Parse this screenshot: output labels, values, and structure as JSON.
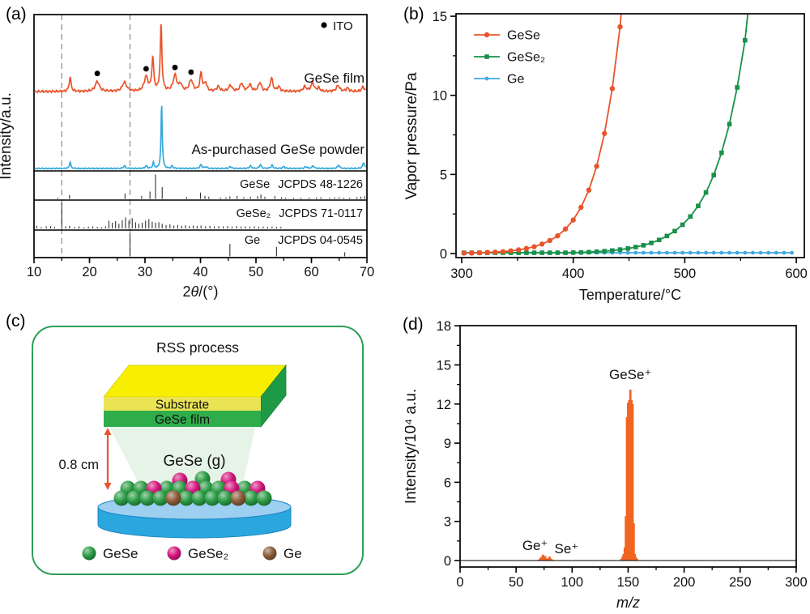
{
  "figure_labels": {
    "a": "(a)",
    "b": "(b)",
    "c": "(c)",
    "d": "(d)"
  },
  "chart_data": [
    {
      "id": "a",
      "type": "line",
      "subtype": "xrd",
      "xlabel": "2θ/(°)",
      "ylabel": "Intensity/a.u.",
      "xlim": [
        10,
        70
      ],
      "xticks": [
        10,
        20,
        30,
        40,
        50,
        60,
        70
      ],
      "xminor_step": 5,
      "grid": false,
      "ito_label": "ITO",
      "ito_dot_positions": [
        21.4,
        30.2,
        35.4,
        38.3
      ],
      "dashed_guides": [
        15.0,
        27.3
      ],
      "series": [
        {
          "name": "GeSe film",
          "color": "#E8542C",
          "peaks": [
            [
              16.5,
              0.22,
              0.2
            ],
            [
              21.4,
              0.15,
              0.45
            ],
            [
              26.3,
              0.14,
              0.45
            ],
            [
              30.2,
              0.22,
              0.4
            ],
            [
              31.4,
              0.5,
              0.2
            ],
            [
              32.9,
              1.0,
              0.18
            ],
            [
              35.4,
              0.24,
              0.38
            ],
            [
              36.4,
              0.1,
              0.3
            ],
            [
              38.3,
              0.17,
              0.38
            ],
            [
              40.1,
              0.27,
              0.24
            ],
            [
              40.9,
              0.12,
              0.28
            ],
            [
              43.2,
              0.07,
              0.35
            ],
            [
              45.4,
              0.09,
              0.35
            ],
            [
              47.4,
              0.12,
              0.32
            ],
            [
              48.9,
              0.1,
              0.32
            ],
            [
              50.7,
              0.13,
              0.32
            ],
            [
              52.8,
              0.2,
              0.28
            ],
            [
              54.1,
              0.07,
              0.28
            ],
            [
              58.8,
              0.07,
              0.35
            ],
            [
              60.2,
              0.13,
              0.32
            ],
            [
              61.3,
              0.05,
              0.28
            ],
            [
              64.8,
              0.09,
              0.35
            ],
            [
              66.5,
              0.05,
              0.3
            ],
            [
              69.3,
              0.07,
              0.28
            ]
          ]
        },
        {
          "name": "As-purchased GeSe powder",
          "color": "#35A8DC",
          "peaks": [
            [
              16.5,
              0.1,
              0.15
            ],
            [
              26.3,
              0.04,
              0.2
            ],
            [
              30.2,
              0.04,
              0.2
            ],
            [
              31.5,
              0.09,
              0.15
            ],
            [
              33.0,
              1.0,
              0.13
            ],
            [
              34.9,
              0.04,
              0.15
            ],
            [
              40.1,
              0.06,
              0.2
            ],
            [
              41.0,
              0.03,
              0.18
            ],
            [
              45.4,
              0.03,
              0.2
            ],
            [
              49.0,
              0.04,
              0.2
            ],
            [
              50.8,
              0.06,
              0.2
            ],
            [
              52.9,
              0.05,
              0.2
            ],
            [
              55.0,
              0.03,
              0.2
            ],
            [
              59.0,
              0.03,
              0.22
            ],
            [
              60.3,
              0.04,
              0.22
            ],
            [
              64.9,
              0.05,
              0.22
            ],
            [
              69.4,
              0.09,
              0.2
            ]
          ]
        }
      ],
      "references": [
        {
          "name": "GeSe",
          "code": "JCPDS 48-1226",
          "sticks": [
            [
              14.3,
              0.05
            ],
            [
              16.4,
              0.16
            ],
            [
              26.4,
              0.22
            ],
            [
              29.4,
              0.12
            ],
            [
              30.9,
              0.3
            ],
            [
              31.9,
              1.0
            ],
            [
              33.1,
              0.48
            ],
            [
              37.5,
              0.07
            ],
            [
              40.0,
              0.26
            ],
            [
              40.8,
              0.12
            ],
            [
              41.5,
              0.09
            ],
            [
              43.6,
              0.06
            ],
            [
              44.6,
              0.06
            ],
            [
              45.3,
              0.1
            ],
            [
              46.6,
              0.12
            ],
            [
              47.8,
              0.07
            ],
            [
              49.0,
              0.09
            ],
            [
              50.3,
              0.11
            ],
            [
              50.9,
              0.18
            ],
            [
              51.6,
              0.09
            ],
            [
              53.4,
              0.11
            ],
            [
              54.6,
              0.07
            ],
            [
              55.3,
              0.05
            ],
            [
              56.8,
              0.05
            ],
            [
              58.1,
              0.05
            ],
            [
              59.6,
              0.05
            ],
            [
              60.9,
              0.06
            ],
            [
              61.7,
              0.07
            ],
            [
              63.3,
              0.05
            ],
            [
              64.2,
              0.06
            ],
            [
              65.0,
              0.07
            ],
            [
              65.8,
              0.05
            ],
            [
              66.9,
              0.05
            ],
            [
              68.2,
              0.07
            ],
            [
              68.9,
              0.09
            ],
            [
              69.6,
              0.11
            ]
          ]
        },
        {
          "name": "GeSe₂",
          "code": "JCPDS 71-0117",
          "sticks": [
            [
              10.5,
              0.1
            ],
            [
              11.3,
              0.05
            ],
            [
              12.2,
              0.08
            ],
            [
              13.0,
              0.09
            ],
            [
              13.7,
              0.06
            ],
            [
              15.0,
              1.0
            ],
            [
              15.7,
              0.08
            ],
            [
              16.4,
              0.1
            ],
            [
              17.3,
              0.06
            ],
            [
              18.1,
              0.08
            ],
            [
              19.0,
              0.05
            ],
            [
              19.8,
              0.07
            ],
            [
              20.6,
              0.08
            ],
            [
              21.4,
              0.06
            ],
            [
              22.2,
              0.05
            ],
            [
              22.9,
              0.08
            ],
            [
              23.5,
              0.3
            ],
            [
              24.1,
              0.22
            ],
            [
              24.7,
              0.28
            ],
            [
              25.3,
              0.18
            ],
            [
              25.9,
              0.32
            ],
            [
              26.5,
              0.42
            ],
            [
              27.1,
              0.3
            ],
            [
              27.7,
              0.4
            ],
            [
              28.3,
              0.24
            ],
            [
              28.9,
              0.18
            ],
            [
              29.5,
              0.22
            ],
            [
              30.1,
              0.3
            ],
            [
              30.7,
              0.36
            ],
            [
              31.3,
              0.26
            ],
            [
              31.9,
              0.22
            ],
            [
              32.5,
              0.24
            ],
            [
              33.1,
              0.18
            ],
            [
              33.8,
              0.13
            ],
            [
              34.5,
              0.16
            ],
            [
              35.2,
              0.11
            ],
            [
              35.9,
              0.13
            ],
            [
              36.6,
              0.1
            ],
            [
              37.3,
              0.12
            ],
            [
              38.0,
              0.09
            ],
            [
              38.7,
              0.11
            ],
            [
              39.4,
              0.09
            ],
            [
              40.1,
              0.11
            ],
            [
              40.9,
              0.08
            ],
            [
              41.7,
              0.1
            ],
            [
              42.5,
              0.08
            ],
            [
              43.3,
              0.09
            ],
            [
              44.1,
              0.08
            ],
            [
              44.9,
              0.09
            ],
            [
              45.7,
              0.07
            ],
            [
              46.5,
              0.09
            ],
            [
              47.3,
              0.07
            ],
            [
              48.1,
              0.08
            ],
            [
              48.9,
              0.07
            ],
            [
              49.7,
              0.08
            ],
            [
              50.5,
              0.07
            ],
            [
              51.3,
              0.07
            ],
            [
              52.1,
              0.06
            ],
            [
              52.9,
              0.07
            ],
            [
              53.7,
              0.06
            ],
            [
              54.5,
              0.06
            ]
          ]
        },
        {
          "name": "Ge",
          "code": "JCPDS 04-0545",
          "sticks": [
            [
              27.3,
              1.0
            ],
            [
              45.3,
              0.55
            ],
            [
              53.7,
              0.42
            ],
            [
              66.0,
              0.18
            ]
          ]
        }
      ]
    },
    {
      "id": "b",
      "type": "line",
      "xlabel": "Temperature/°C",
      "ylabel": "Vapor pressure/Pa",
      "xlim": [
        295,
        607
      ],
      "ylim": [
        0,
        15
      ],
      "xticks": [
        300,
        400,
        500,
        600
      ],
      "xminors": [
        350,
        450,
        550
      ],
      "yticks": [
        0,
        5,
        10,
        15
      ],
      "yminors": [
        2.5,
        7.5,
        12.5
      ],
      "legend_position": "top-left",
      "series": [
        {
          "name": "Ge",
          "color": "#3FA9E0",
          "marker": "circle_small",
          "x_range": [
            302,
            596,
            7
          ],
          "y_const": 0.05
        },
        {
          "name": "GeSe₂",
          "color": "#18914A",
          "marker": "square",
          "x": [
            302,
            309,
            316,
            323,
            330,
            337,
            344,
            351,
            358,
            365,
            372,
            379,
            386,
            393,
            400,
            407,
            414,
            421,
            428,
            435,
            442,
            449,
            456,
            463,
            470,
            477,
            484,
            491,
            498,
            505,
            512,
            519,
            526,
            533,
            540,
            547,
            554,
            558
          ],
          "y": [
            0.05,
            0.05,
            0.05,
            0.05,
            0.05,
            0.05,
            0.05,
            0.05,
            0.05,
            0.05,
            0.05,
            0.05,
            0.05,
            0.05,
            0.06,
            0.07,
            0.09,
            0.12,
            0.15,
            0.19,
            0.25,
            0.32,
            0.41,
            0.52,
            0.67,
            0.86,
            1.11,
            1.42,
            1.82,
            2.34,
            3.01,
            3.86,
            4.96,
            6.37,
            8.18,
            10.5,
            13.48,
            16.2
          ]
        },
        {
          "name": "GeSe",
          "color": "#E8542C",
          "marker": "circle",
          "x": [
            302,
            309,
            316,
            323,
            330,
            337,
            344,
            351,
            358,
            365,
            372,
            379,
            386,
            393,
            400,
            407,
            414,
            421,
            428,
            435,
            442,
            444.6
          ],
          "y": [
            0.03,
            0.03,
            0.05,
            0.07,
            0.09,
            0.12,
            0.17,
            0.23,
            0.32,
            0.43,
            0.6,
            0.82,
            1.12,
            1.55,
            2.12,
            2.92,
            4.01,
            5.52,
            7.59,
            10.43,
            14.33,
            16.5
          ]
        }
      ],
      "legend_order": [
        "GeSe",
        "GeSe₂",
        "Ge"
      ]
    },
    {
      "id": "d",
      "type": "bar",
      "xlabel": "m/z",
      "xlabel_italic": true,
      "ylabel": "Intensity/10⁴ a.u.",
      "xlim": [
        0,
        300
      ],
      "ylim": [
        0,
        18
      ],
      "xticks": [
        0,
        50,
        100,
        150,
        200,
        250,
        300
      ],
      "xminor_step": 25,
      "yticks": [
        0,
        3,
        6,
        9,
        12,
        15,
        18
      ],
      "yminor_step": 1.5,
      "bar_color": "#F16522",
      "bars": [
        [
          70,
          0.06
        ],
        [
          71,
          0.1
        ],
        [
          72,
          0.22
        ],
        [
          73,
          0.3
        ],
        [
          74,
          0.45
        ],
        [
          75,
          0.3
        ],
        [
          76,
          0.35
        ],
        [
          77,
          0.15
        ],
        [
          78,
          0.12
        ],
        [
          79,
          0.2
        ],
        [
          80,
          0.3
        ],
        [
          81,
          0.15
        ],
        [
          82,
          0.08
        ],
        [
          144,
          0.12
        ],
        [
          145,
          0.3
        ],
        [
          146,
          0.5
        ],
        [
          147,
          1.0
        ],
        [
          148,
          3.4
        ],
        [
          149,
          11.0
        ],
        [
          150,
          12.1
        ],
        [
          151,
          12.3
        ],
        [
          152,
          13.1
        ],
        [
          153,
          12.3
        ],
        [
          154,
          12.0
        ],
        [
          155,
          2.85
        ],
        [
          156,
          0.5
        ],
        [
          157,
          0.25
        ],
        [
          158,
          0.12
        ]
      ],
      "annotations": [
        {
          "text": "GeSe⁺",
          "x": 152,
          "y": 13.9
        },
        {
          "text": "Ge⁺",
          "x": 67,
          "y": 0.8
        },
        {
          "text": "Se⁺",
          "x": 95,
          "y": 0.55
        }
      ]
    }
  ],
  "panel_c": {
    "title": "RSS process",
    "substrate_label": "Substrate",
    "film_label": "GeSe film",
    "gas_label": "GeSe (g)",
    "distance_label": "0.8 cm",
    "legend": [
      {
        "label": "GeSe",
        "color": "#2B9B44"
      },
      {
        "label": "GeSe₂",
        "color": "#D4157E"
      },
      {
        "label": "Ge",
        "color": "#8A5C3A"
      }
    ],
    "palette": {
      "substrate_top": "#F8EE00",
      "substrate_front": "#EAE455",
      "film_front": "#2FAD4B",
      "slab_side": "#1E9A47",
      "gas_fill": "#E6F3E7",
      "gas_text": "#2E9E5B",
      "arrow": "#E8542C",
      "dish_top": "#9CCFF0",
      "dish_body": "#2AA7DF",
      "dish_edge": "#1C84C0",
      "border": "#2E9E57"
    }
  }
}
